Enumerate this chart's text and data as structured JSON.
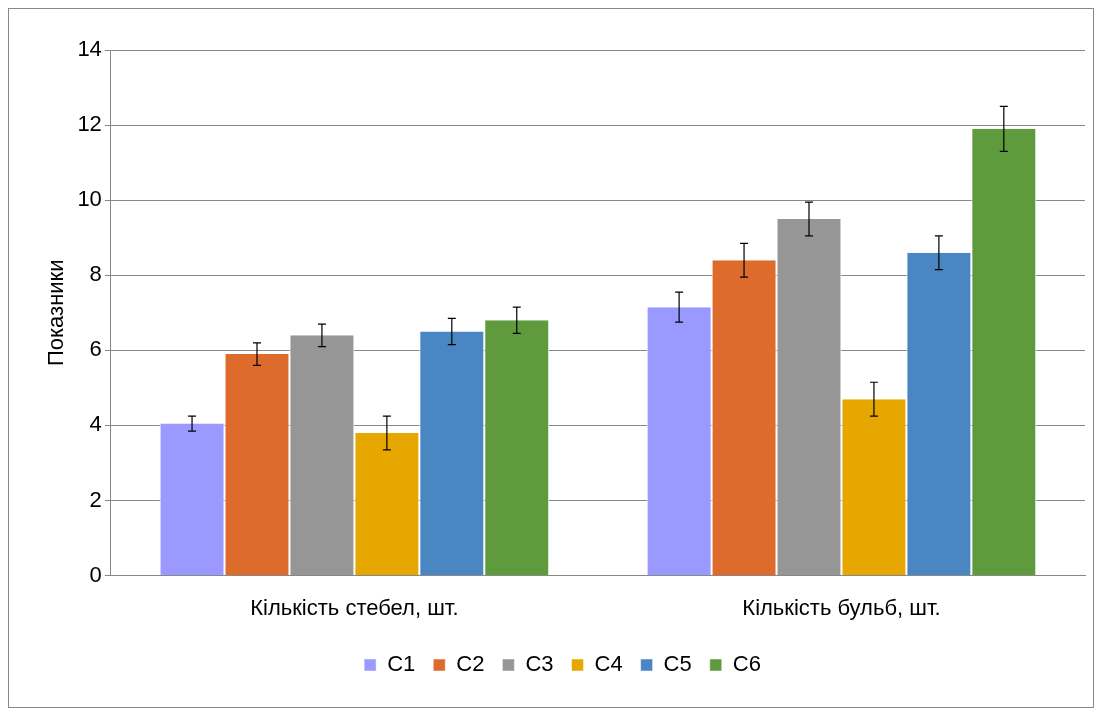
{
  "chart_data": {
    "type": "bar",
    "ylabel": "Показники",
    "categories": [
      "Кількість стебел, шт.",
      "Кількість бульб, шт."
    ],
    "series": [
      {
        "name": "С1",
        "color": "#9999ff",
        "values": [
          4.05,
          7.15
        ],
        "errors": [
          0.2,
          0.4
        ]
      },
      {
        "name": "С2",
        "color": "#dd6b2c",
        "values": [
          5.9,
          8.4
        ],
        "errors": [
          0.3,
          0.45
        ]
      },
      {
        "name": "С3",
        "color": "#969696",
        "values": [
          6.4,
          9.5
        ],
        "errors": [
          0.3,
          0.45
        ]
      },
      {
        "name": "С4",
        "color": "#e6a800",
        "values": [
          3.8,
          4.7
        ],
        "errors": [
          0.45,
          0.45
        ]
      },
      {
        "name": "С5",
        "color": "#4a86c2",
        "values": [
          6.5,
          8.6
        ],
        "errors": [
          0.35,
          0.45
        ]
      },
      {
        "name": "С6",
        "color": "#5f9b3c",
        "values": [
          6.8,
          11.9
        ],
        "errors": [
          0.35,
          0.6
        ]
      }
    ],
    "ylim": [
      0,
      14
    ],
    "yticks": [
      0,
      2,
      4,
      6,
      8,
      10,
      12,
      14
    ],
    "grid": "y",
    "legend": "bottom"
  }
}
